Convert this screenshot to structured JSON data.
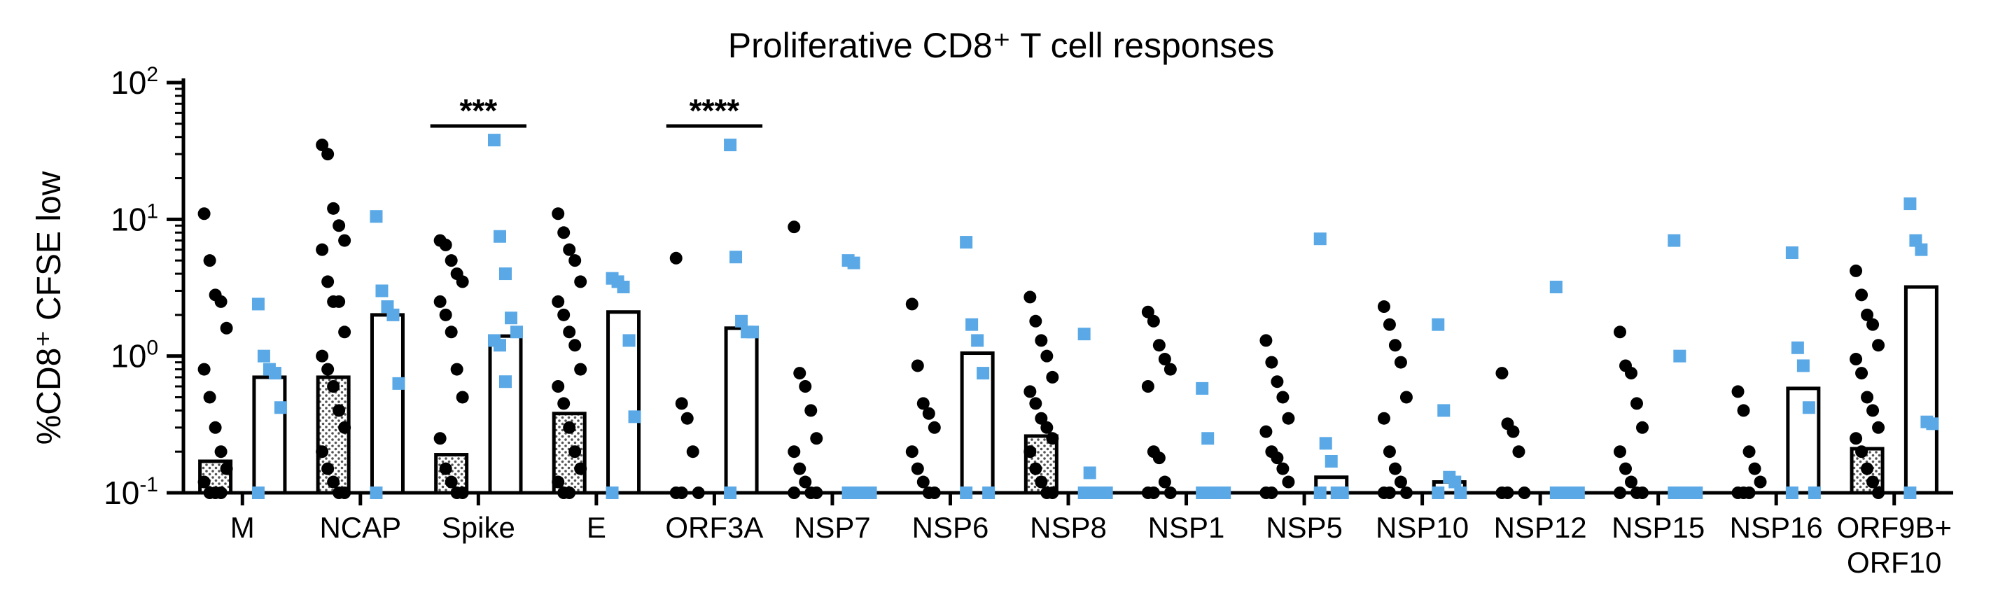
{
  "chart_data": {
    "type": "bar",
    "title": "Proliferative CD8⁺ T cell responses",
    "ylabel": "%CD8⁺ CFSE low",
    "yscale": "log",
    "ylim": [
      0.1,
      100
    ],
    "yticks": [
      {
        "value": 0.1,
        "base": "10",
        "exp": "-1"
      },
      {
        "value": 1,
        "base": "10",
        "exp": "0"
      },
      {
        "value": 10,
        "base": "10",
        "exp": "1"
      },
      {
        "value": 100,
        "base": "10",
        "exp": "2"
      }
    ],
    "categories": [
      "M",
      "NCAP",
      "Spike",
      "E",
      "ORF3A",
      "NSP7",
      "NSP6",
      "NSP8",
      "NSP1",
      "NSP5",
      "NSP10",
      "NSP12",
      "NSP15",
      "NSP16",
      "ORF9B+\nORF10"
    ],
    "series": [
      {
        "color": "#000000",
        "bar_fill": "patterned",
        "values": [
          0.17,
          0.7,
          0.19,
          0.38,
          0.1,
          0.1,
          0.1,
          0.26,
          0.1,
          0.1,
          0.1,
          0.1,
          0.1,
          0.1,
          0.21
        ],
        "points": [
          [
            11,
            5,
            2.8,
            2.5,
            1.6,
            0.8,
            0.5,
            0.3,
            0.2,
            0.15,
            0.12,
            0.1,
            0.1,
            0.1
          ],
          [
            35,
            30,
            12,
            9,
            7,
            6,
            3.5,
            2.5,
            2.5,
            1.5,
            1,
            0.8,
            0.6,
            0.4,
            0.3,
            0.2,
            0.15,
            0.12,
            0.1,
            0.1
          ],
          [
            7,
            6.5,
            5,
            4,
            3.5,
            2.5,
            2,
            1.5,
            0.8,
            0.5,
            0.25,
            0.15,
            0.12,
            0.1,
            0.1
          ],
          [
            11,
            8,
            6,
            5,
            3.5,
            2.5,
            2,
            1.5,
            1.2,
            0.8,
            0.6,
            0.45,
            0.3,
            0.2,
            0.15,
            0.12,
            0.1,
            0.1
          ],
          [
            5.2,
            0.45,
            0.35,
            0.2,
            0.1,
            0.1,
            0.1
          ],
          [
            8.8,
            0.75,
            0.6,
            0.4,
            0.25,
            0.2,
            0.15,
            0.12,
            0.1,
            0.1,
            0.1
          ],
          [
            2.4,
            0.85,
            0.45,
            0.38,
            0.3,
            0.2,
            0.15,
            0.12,
            0.1,
            0.1
          ],
          [
            2.7,
            1.8,
            1.3,
            1,
            0.7,
            0.55,
            0.45,
            0.35,
            0.3,
            0.25,
            0.2,
            0.15,
            0.12,
            0.1,
            0.1
          ],
          [
            2.1,
            1.8,
            1.2,
            0.95,
            0.8,
            0.6,
            0.2,
            0.18,
            0.12,
            0.1,
            0.1,
            0.1
          ],
          [
            1.3,
            0.9,
            0.65,
            0.5,
            0.35,
            0.28,
            0.2,
            0.18,
            0.15,
            0.12,
            0.1,
            0.1
          ],
          [
            2.3,
            1.7,
            1.2,
            0.9,
            0.5,
            0.35,
            0.2,
            0.15,
            0.12,
            0.1,
            0.1,
            0.1
          ],
          [
            0.75,
            0.32,
            0.28,
            0.2,
            0.1,
            0.1,
            0.1
          ],
          [
            1.5,
            0.85,
            0.75,
            0.45,
            0.3,
            0.2,
            0.15,
            0.12,
            0.1,
            0.1,
            0.1
          ],
          [
            0.55,
            0.4,
            0.2,
            0.15,
            0.12,
            0.1,
            0.1,
            0.1
          ],
          [
            4.2,
            2.8,
            2,
            1.7,
            1.2,
            0.95,
            0.75,
            0.5,
            0.4,
            0.3,
            0.25,
            0.2,
            0.15,
            0.12,
            0.1
          ]
        ]
      },
      {
        "color": "#5aa9e6",
        "bar_fill": "white",
        "values": [
          0.7,
          2.0,
          1.4,
          2.1,
          1.6,
          0.1,
          1.05,
          0.1,
          0.1,
          0.13,
          0.12,
          0.1,
          0.1,
          0.58,
          3.2
        ],
        "points": [
          [
            2.4,
            1.0,
            0.8,
            0.75,
            0.42,
            0.1
          ],
          [
            10.5,
            3.0,
            2.3,
            2.0,
            0.63,
            0.1
          ],
          [
            38,
            7.5,
            4.0,
            1.9,
            1.5,
            1.3,
            1.2,
            0.65
          ],
          [
            3.7,
            3.5,
            3.2,
            1.3,
            0.36,
            0.1
          ],
          [
            35,
            5.3,
            1.8,
            1.5,
            1.5,
            0.1
          ],
          [
            5.0,
            4.8,
            0.1,
            0.1,
            0.1,
            0.1
          ],
          [
            6.8,
            1.7,
            1.3,
            0.75,
            0.1,
            0.1
          ],
          [
            1.45,
            0.14,
            0.1,
            0.1,
            0.1,
            0.1
          ],
          [
            0.58,
            0.25,
            0.1,
            0.1,
            0.1,
            0.1
          ],
          [
            7.2,
            0.23,
            0.17,
            0.1,
            0.1,
            0.1
          ],
          [
            1.7,
            0.4,
            0.13,
            0.12,
            0.1,
            0.1
          ],
          [
            3.2,
            0.1,
            0.1,
            0.1,
            0.1,
            0.1
          ],
          [
            7.0,
            1.0,
            0.1,
            0.1,
            0.1,
            0.1
          ],
          [
            5.7,
            1.15,
            0.85,
            0.42,
            0.1,
            0.1
          ],
          [
            13,
            7.0,
            6.0,
            0.33,
            0.32,
            0.1
          ]
        ]
      }
    ],
    "annotations": [
      {
        "text": "***",
        "category_index": 2
      },
      {
        "text": "****",
        "category_index": 4
      }
    ],
    "grid": false,
    "legend": "none"
  }
}
